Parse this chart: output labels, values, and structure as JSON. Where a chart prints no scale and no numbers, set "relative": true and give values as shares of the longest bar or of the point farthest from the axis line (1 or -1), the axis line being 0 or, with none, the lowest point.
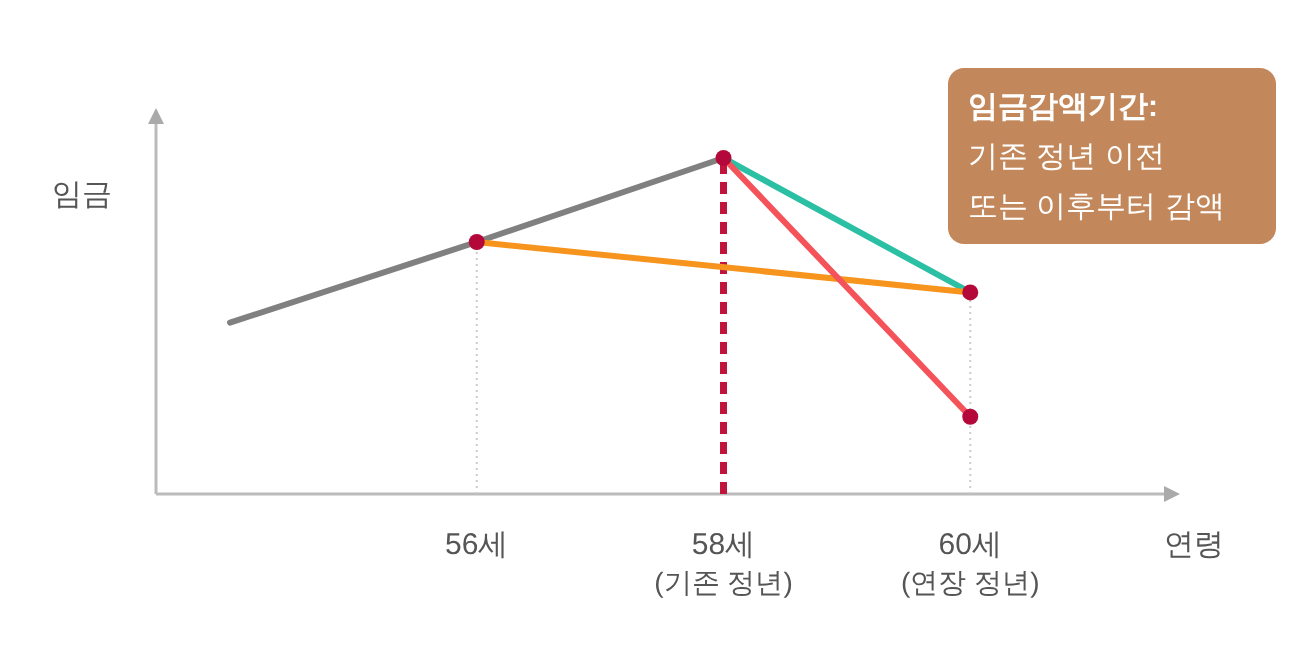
{
  "chart_data": {
    "type": "line",
    "relative": true,
    "ylabel": "임금",
    "xlabel": "연령",
    "xlim": [
      53.4,
      61.7
    ],
    "xticks": [
      {
        "value": 56,
        "label": "56세"
      },
      {
        "value": 58,
        "label": "58세\n(기존 정년)"
      },
      {
        "value": 60,
        "label": "60세\n(연장 정년)"
      }
    ],
    "series": [
      {
        "color": "#808080",
        "x": [
          54,
          56,
          58
        ],
        "values": [
          0.51,
          0.75,
          1
        ]
      },
      {
        "color": "#2bbfa4",
        "x": [
          58,
          60
        ],
        "values": [
          1,
          0.6
        ]
      },
      {
        "color": "#f7941d",
        "x": [
          56,
          60
        ],
        "values": [
          0.75,
          0.6
        ]
      },
      {
        "color": "#f5535a",
        "x": [
          58,
          60
        ],
        "values": [
          1,
          0.23
        ]
      },
      {
        "type": "scatter",
        "color": "#b5083a",
        "x": [
          56,
          58,
          60,
          60
        ],
        "values": [
          0.75,
          1,
          0.6,
          0.23
        ]
      }
    ],
    "ref_lines": [
      {
        "axis": "x",
        "value": 56,
        "color": "#cccccc",
        "line_style": "dotted"
      },
      {
        "axis": "x",
        "value": 58,
        "color": "#c0143c",
        "line_style": "dashed"
      },
      {
        "axis": "x",
        "value": 60,
        "color": "#cccccc",
        "line_style": "dotted"
      }
    ],
    "annotations": [
      "임금감액기간:\n기존 정년 이전\n또는 이후부터 감액"
    ],
    "grid": false
  }
}
